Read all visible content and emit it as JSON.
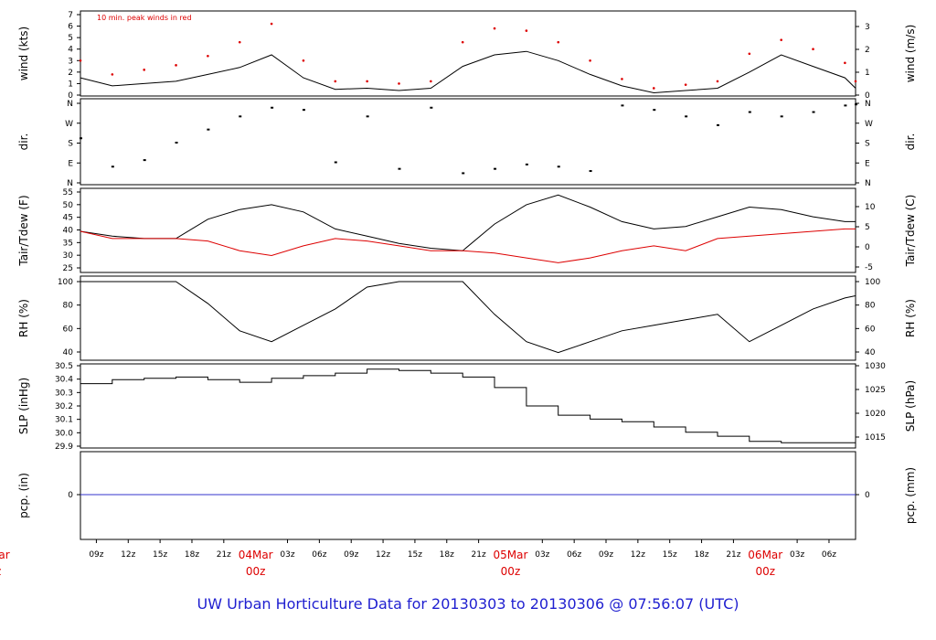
{
  "title": "UW Urban Horticulture Data for 20130303  to  20130306 @ 07:56:07  (UTC)",
  "annotation": "10 min. peak winds in red",
  "colors": {
    "main": "#000000",
    "accent": "#dd0000",
    "precip": "#3333cc",
    "title": "#1f1fd0"
  },
  "time_axis": {
    "hour_labels": [
      "09z",
      "12z",
      "15z",
      "18z",
      "21z",
      "03z",
      "06z",
      "09z",
      "12z",
      "15z",
      "18z",
      "21z",
      "03z",
      "06z",
      "09z",
      "12z",
      "15z",
      "18z",
      "21z",
      "03z",
      "06z"
    ],
    "day_labels": [
      {
        "date": "04Mar",
        "hour": "00z"
      },
      {
        "date": "05Mar",
        "hour": "00z"
      },
      {
        "date": "06Mar",
        "hour": "00z"
      }
    ],
    "clipped_left_day": {
      "date": "Mar",
      "hour": "z"
    }
  },
  "panels": [
    {
      "left_label": "wind (kts)",
      "right_label": "wind (m/s)",
      "left_ticks": [
        "7",
        "6",
        "5",
        "4",
        "3",
        "2",
        "1",
        "0"
      ],
      "right_ticks": [
        "3",
        "2",
        "1",
        "0"
      ]
    },
    {
      "left_label": "dir.",
      "right_label": "dir.",
      "left_ticks": [
        "N",
        "W",
        "S",
        "E",
        "N"
      ],
      "right_ticks": [
        "N",
        "W",
        "S",
        "E",
        "N"
      ]
    },
    {
      "left_label": "Tair/Tdew (F)",
      "right_label": "Tair/Tdew (C)",
      "left_ticks": [
        "55",
        "50",
        "45",
        "40",
        "35",
        "30",
        "25"
      ],
      "right_ticks": [
        "10",
        "5",
        "0",
        "-5"
      ]
    },
    {
      "left_label": "RH (%)",
      "right_label": "RH (%)",
      "left_ticks": [
        "100",
        "80",
        "60",
        "40"
      ],
      "right_ticks": [
        "100",
        "80",
        "60",
        "40"
      ]
    },
    {
      "left_label": "SLP (inHg)",
      "right_label": "SLP (hPa)",
      "left_ticks": [
        "30.5",
        "30.4",
        "30.3",
        "30.2",
        "30.1",
        "30.0",
        "29.9"
      ],
      "right_ticks": [
        "1030",
        "1025",
        "1020",
        "1015"
      ]
    },
    {
      "left_label": "pcp. (in)",
      "right_label": "pcp. (mm)",
      "left_ticks": [
        "0"
      ],
      "right_ticks": [
        "0"
      ]
    }
  ],
  "chart_data": [
    {
      "type": "line",
      "ylabel": "wind (kts)",
      "ylim": [
        0,
        7
      ],
      "x_hours": [
        0,
        3,
        6,
        9,
        12,
        15,
        18,
        21,
        24,
        27,
        30,
        33,
        36,
        39,
        42,
        45,
        48,
        51,
        54,
        57,
        60,
        63,
        66,
        69,
        72,
        73
      ],
      "series": [
        {
          "values": [
            1.5,
            0.8,
            1.0,
            1.2,
            1.8,
            2.4,
            3.5,
            1.5,
            0.5,
            0.6,
            0.4,
            0.6,
            2.5,
            3.5,
            3.8,
            3.0,
            1.8,
            0.8,
            0.2,
            0.4,
            0.6,
            2.0,
            3.5,
            2.5,
            1.5,
            0.6
          ]
        },
        {
          "name": "10 min. peak winds in red",
          "values": [
            3.0,
            1.8,
            2.2,
            2.6,
            3.4,
            4.6,
            6.2,
            3.0,
            1.2,
            1.2,
            1.0,
            1.2,
            4.6,
            5.8,
            5.6,
            4.6,
            3.0,
            1.4,
            0.6,
            0.9,
            1.2,
            3.6,
            4.8,
            4.0,
            2.8,
            1.2
          ]
        }
      ]
    },
    {
      "type": "scatter",
      "ylabel": "dir.",
      "x_hours": [
        0,
        3,
        6,
        9,
        12,
        15,
        18,
        21,
        24,
        27,
        30,
        33,
        36,
        39,
        42,
        45,
        48,
        51,
        54,
        57,
        60,
        63,
        66,
        69,
        72,
        73
      ],
      "series": [
        {
          "values": [
            200,
            70,
            100,
            180,
            240,
            300,
            340,
            330,
            90,
            300,
            60,
            340,
            40,
            60,
            80,
            70,
            50,
            350,
            330,
            300,
            260,
            320,
            300,
            320,
            350,
            355
          ]
        }
      ]
    },
    {
      "type": "line",
      "ylabel": "Tair/Tdew (F)",
      "ylim": [
        22,
        56
      ],
      "x_hours": [
        0,
        3,
        6,
        9,
        12,
        15,
        18,
        21,
        24,
        27,
        30,
        33,
        36,
        39,
        42,
        45,
        48,
        51,
        54,
        57,
        60,
        63,
        66,
        69,
        72,
        73
      ],
      "series": [
        {
          "values": [
            39,
            37,
            36,
            36,
            44,
            48,
            50,
            47,
            40,
            37,
            34,
            32,
            31,
            42,
            50,
            54,
            49,
            43,
            40,
            41,
            45,
            49,
            48,
            45,
            43,
            43
          ]
        },
        {
          "values": [
            39,
            36,
            36,
            36,
            35,
            31,
            29,
            33,
            36,
            35,
            33,
            31,
            31,
            30,
            28,
            26,
            28,
            31,
            33,
            31,
            36,
            37,
            38,
            39,
            40,
            40
          ]
        }
      ]
    },
    {
      "type": "line",
      "ylabel": "RH (%)",
      "ylim": [
        28,
        100
      ],
      "x_hours": [
        0,
        3,
        6,
        9,
        12,
        15,
        18,
        21,
        24,
        27,
        30,
        33,
        36,
        39,
        42,
        45,
        48,
        51,
        54,
        57,
        60,
        63,
        66,
        69,
        72,
        73
      ],
      "series": [
        {
          "values": [
            100,
            100,
            100,
            100,
            80,
            55,
            45,
            60,
            75,
            95,
            100,
            100,
            100,
            70,
            45,
            35,
            45,
            55,
            60,
            65,
            70,
            45,
            60,
            75,
            85,
            87
          ]
        }
      ]
    },
    {
      "type": "line",
      "ylabel": "SLP (inHg)",
      "ylim": [
        29.88,
        30.52
      ],
      "x_hours": [
        0,
        3,
        6,
        9,
        12,
        15,
        18,
        21,
        24,
        27,
        30,
        33,
        36,
        39,
        42,
        45,
        48,
        51,
        54,
        57,
        60,
        63,
        66,
        69,
        72,
        73
      ],
      "series": [
        {
          "values": [
            30.37,
            30.4,
            30.41,
            30.42,
            30.4,
            30.38,
            30.41,
            30.43,
            30.45,
            30.48,
            30.47,
            30.45,
            30.42,
            30.34,
            30.2,
            30.13,
            30.1,
            30.08,
            30.04,
            30.0,
            29.97,
            29.93,
            29.92,
            29.92,
            29.92,
            29.88
          ]
        }
      ]
    },
    {
      "type": "line",
      "ylabel": "pcp. (in)",
      "x_hours": [
        0,
        73
      ],
      "series": [
        {
          "values": [
            0,
            0
          ]
        }
      ]
    }
  ]
}
